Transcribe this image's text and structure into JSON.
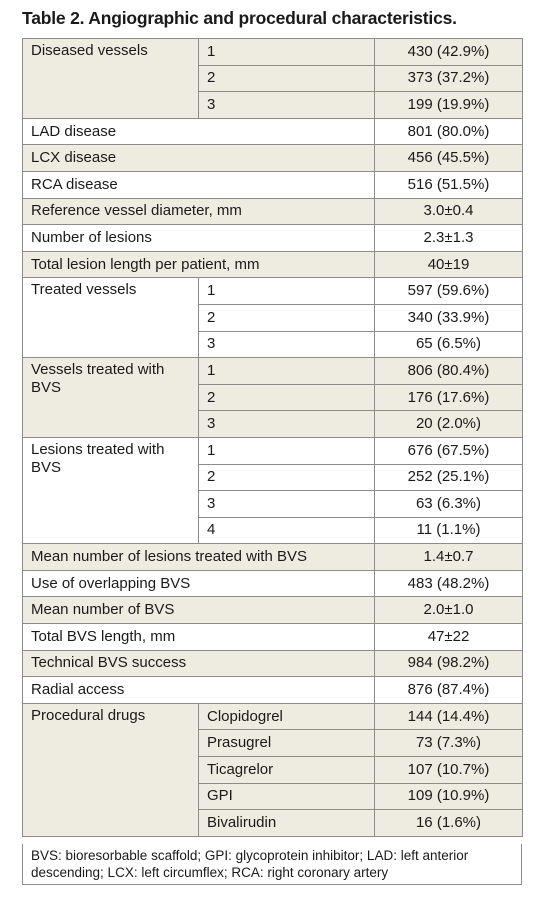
{
  "title": "Table 2. Angiographic and procedural characteristics.",
  "rows": [
    {
      "label": "Diseased vessels",
      "sub": [
        {
          "k": "1",
          "v": "430 (42.9%)"
        },
        {
          "k": "2",
          "v": "373 (37.2%)"
        },
        {
          "k": "3",
          "v": "199 (19.9%)"
        }
      ]
    },
    {
      "label": "LAD disease",
      "v": "801 (80.0%)"
    },
    {
      "label": "LCX disease",
      "v": "456 (45.5%)"
    },
    {
      "label": "RCA disease",
      "v": "516 (51.5%)"
    },
    {
      "label": "Reference vessel diameter, mm",
      "v": "3.0±0.4"
    },
    {
      "label": "Number of lesions",
      "v": "2.3±1.3"
    },
    {
      "label": "Total lesion length per patient, mm",
      "v": "40±19"
    },
    {
      "label": "Treated vessels",
      "sub": [
        {
          "k": "1",
          "v": "597 (59.6%)"
        },
        {
          "k": "2",
          "v": "340 (33.9%)"
        },
        {
          "k": "3",
          "v": "65 (6.5%)"
        }
      ]
    },
    {
      "label": "Vessels treated with BVS",
      "sub": [
        {
          "k": "1",
          "v": "806 (80.4%)"
        },
        {
          "k": "2",
          "v": "176 (17.6%)"
        },
        {
          "k": "3",
          "v": "20 (2.0%)"
        }
      ]
    },
    {
      "label": "Lesions treated with BVS",
      "sub": [
        {
          "k": "1",
          "v": "676 (67.5%)"
        },
        {
          "k": "2",
          "v": "252 (25.1%)"
        },
        {
          "k": "3",
          "v": "63 (6.3%)"
        },
        {
          "k": "4",
          "v": "11 (1.1%)"
        }
      ]
    },
    {
      "label": "Mean number of lesions treated with BVS",
      "v": "1.4±0.7"
    },
    {
      "label": "Use of overlapping BVS",
      "v": "483 (48.2%)"
    },
    {
      "label": "Mean number of BVS",
      "v": "2.0±1.0"
    },
    {
      "label": "Total BVS length, mm",
      "v": "47±22"
    },
    {
      "label": "Technical BVS success",
      "v": "984 (98.2%)"
    },
    {
      "label": "Radial access",
      "v": "876 (87.4%)"
    },
    {
      "label": "Procedural drugs",
      "sub": [
        {
          "k": "Clopidogrel",
          "v": "144 (14.4%)"
        },
        {
          "k": "Prasugrel",
          "v": "73 (7.3%)"
        },
        {
          "k": "Ticagrelor",
          "v": "107 (10.7%)"
        },
        {
          "k": "GPI",
          "v": "109 (10.9%)"
        },
        {
          "k": "Bivalirudin",
          "v": "16 (1.6%)"
        }
      ]
    }
  ],
  "footnote": "BVS: bioresorbable scaffold; GPI: glycoprotein inhibitor; LAD: left anterior descending; LCX: left circumflex; RCA: right coronary artery",
  "colors": {
    "shade": "#eeebe0",
    "border": "#8c8c8c",
    "text": "#1a1a1a"
  }
}
